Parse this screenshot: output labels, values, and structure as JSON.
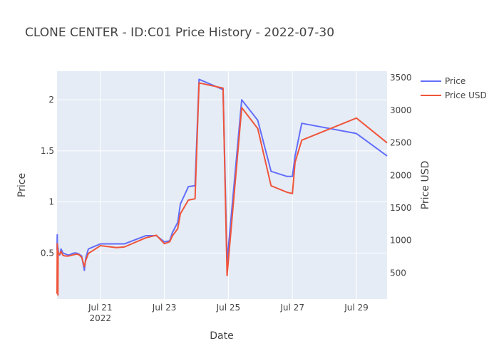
{
  "chart_data": {
    "type": "line",
    "title": "CLONE CENTER - ID:C01 Price History - 2022-07-30",
    "xlabel": "Date",
    "ylabel": "Price",
    "y2label": "Price USD",
    "x_tick_labels": [
      {
        "date": "2022-07-21",
        "label": "Jul 21",
        "sublabel": "2022"
      },
      {
        "date": "2022-07-23",
        "label": "Jul 23",
        "sublabel": ""
      },
      {
        "date": "2022-07-25",
        "label": "Jul 25",
        "sublabel": ""
      },
      {
        "date": "2022-07-27",
        "label": "Jul 27",
        "sublabel": ""
      },
      {
        "date": "2022-07-29",
        "label": "Jul 29",
        "sublabel": ""
      }
    ],
    "xlim": [
      "2022-07-19 15:30",
      "2022-07-29 23:00"
    ],
    "y_ticks": [
      0.5,
      1,
      1.5,
      2
    ],
    "y_tick_labels": [
      "0.5",
      "1",
      "1.5",
      "2"
    ],
    "ylim": [
      0.05,
      2.28
    ],
    "y2_ticks": [
      500,
      1000,
      1500,
      2000,
      2500,
      3000,
      3500
    ],
    "y2_tick_labels": [
      "500",
      "1000",
      "1500",
      "2000",
      "2500",
      "3000",
      "3500"
    ],
    "y2lim": [
      100,
      3600
    ],
    "grid": true,
    "legend_position": "top-right",
    "series": [
      {
        "name": "Price",
        "axis": "y",
        "color": "#636efa",
        "points": [
          [
            "2022-07-19 15:30",
            0.53
          ],
          [
            "2022-07-19 15:40",
            0.68
          ],
          [
            "2022-07-19 15:50",
            0.5
          ],
          [
            "2022-07-19 16:00",
            0.58
          ],
          [
            "2022-07-19 16:10",
            0.52
          ],
          [
            "2022-07-19 16:20",
            0.55
          ],
          [
            "2022-07-19 16:30",
            0.5
          ],
          [
            "2022-07-19 17:30",
            0.48
          ],
          [
            "2022-07-19 18:30",
            0.54
          ],
          [
            "2022-07-19 20:00",
            0.5
          ],
          [
            "2022-07-19 22:00",
            0.49
          ],
          [
            "2022-07-20 00:00",
            0.48
          ],
          [
            "2022-07-20 04:00",
            0.5
          ],
          [
            "2022-07-20 06:00",
            0.5
          ],
          [
            "2022-07-20 08:00",
            0.49
          ],
          [
            "2022-07-20 10:00",
            0.47
          ],
          [
            "2022-07-20 12:00",
            0.33
          ],
          [
            "2022-07-20 13:00",
            0.45
          ],
          [
            "2022-07-20 15:00",
            0.54
          ],
          [
            "2022-07-21 00:00",
            0.59
          ],
          [
            "2022-07-21 18:00",
            0.59
          ],
          [
            "2022-07-22 10:00",
            0.67
          ],
          [
            "2022-07-22 18:00",
            0.67
          ],
          [
            "2022-07-23 00:00",
            0.61
          ],
          [
            "2022-07-23 04:00",
            0.62
          ],
          [
            "2022-07-23 06:00",
            0.7
          ],
          [
            "2022-07-23 10:00",
            0.8
          ],
          [
            "2022-07-23 12:00",
            0.98
          ],
          [
            "2022-07-23 18:00",
            1.15
          ],
          [
            "2022-07-23 23:00",
            1.16
          ],
          [
            "2022-07-24 02:00",
            2.2
          ],
          [
            "2022-07-24 20:00",
            2.1
          ],
          [
            "2022-07-24 23:00",
            0.41
          ],
          [
            "2022-07-25 10:00",
            2.0
          ],
          [
            "2022-07-25 22:00",
            1.8
          ],
          [
            "2022-07-26 08:00",
            1.3
          ],
          [
            "2022-07-26 20:00",
            1.25
          ],
          [
            "2022-07-27 00:00",
            1.25
          ],
          [
            "2022-07-27 02:00",
            1.45
          ],
          [
            "2022-07-27 07:00",
            1.77
          ],
          [
            "2022-07-29 00:00",
            1.67
          ],
          [
            "2022-07-29 23:00",
            1.45
          ]
        ]
      },
      {
        "name": "Price USD",
        "axis": "y2",
        "color": "#ef553b",
        "points": [
          [
            "2022-07-19 15:30",
            180
          ],
          [
            "2022-07-19 15:40",
            950
          ],
          [
            "2022-07-19 15:50",
            800
          ],
          [
            "2022-07-19 16:00",
            880
          ],
          [
            "2022-07-19 16:10",
            160
          ],
          [
            "2022-07-19 16:20",
            830
          ],
          [
            "2022-07-19 16:30",
            800
          ],
          [
            "2022-07-19 17:30",
            790
          ],
          [
            "2022-07-19 18:30",
            830
          ],
          [
            "2022-07-19 20:00",
            770
          ],
          [
            "2022-07-19 22:00",
            760
          ],
          [
            "2022-07-20 00:00",
            760
          ],
          [
            "2022-07-20 04:00",
            780
          ],
          [
            "2022-07-20 06:00",
            790
          ],
          [
            "2022-07-20 08:00",
            780
          ],
          [
            "2022-07-20 10:00",
            740
          ],
          [
            "2022-07-20 12:00",
            600
          ],
          [
            "2022-07-20 13:00",
            690
          ],
          [
            "2022-07-20 15:00",
            800
          ],
          [
            "2022-07-21 00:00",
            920
          ],
          [
            "2022-07-21 12:00",
            890
          ],
          [
            "2022-07-21 18:00",
            900
          ],
          [
            "2022-07-22 10:00",
            1040
          ],
          [
            "2022-07-22 18:00",
            1080
          ],
          [
            "2022-07-23 00:00",
            950
          ],
          [
            "2022-07-23 04:00",
            980
          ],
          [
            "2022-07-23 06:00",
            1070
          ],
          [
            "2022-07-23 10:00",
            1180
          ],
          [
            "2022-07-23 12:00",
            1410
          ],
          [
            "2022-07-23 18:00",
            1620
          ],
          [
            "2022-07-23 23:00",
            1640
          ],
          [
            "2022-07-24 02:00",
            3420
          ],
          [
            "2022-07-24 20:00",
            3340
          ],
          [
            "2022-07-24 23:00",
            460
          ],
          [
            "2022-07-25 10:00",
            3040
          ],
          [
            "2022-07-25 22:00",
            2720
          ],
          [
            "2022-07-26 08:00",
            1840
          ],
          [
            "2022-07-26 20:00",
            1740
          ],
          [
            "2022-07-27 00:00",
            1720
          ],
          [
            "2022-07-27 02:00",
            2200
          ],
          [
            "2022-07-27 07:00",
            2540
          ],
          [
            "2022-07-29 00:00",
            2880
          ],
          [
            "2022-07-29 23:00",
            2500
          ]
        ]
      }
    ]
  }
}
